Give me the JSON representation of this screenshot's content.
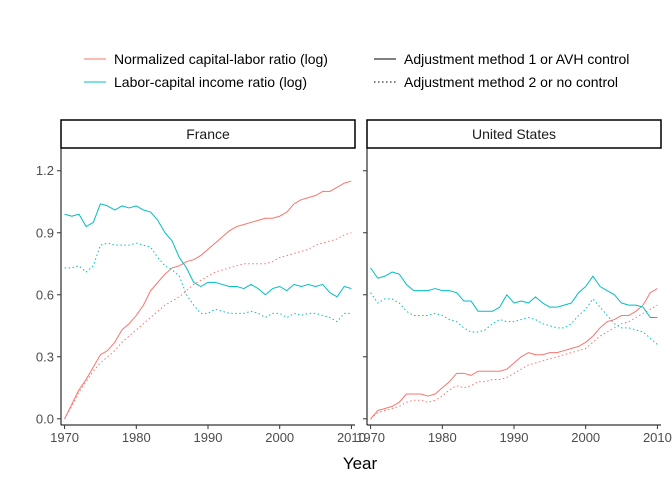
{
  "chart_data": {
    "type": "line",
    "xlabel": "Year",
    "ylabel": "",
    "xlim": [
      1969.5,
      2010.5
    ],
    "ylim": [
      -0.03,
      1.31
    ],
    "x_ticks": [
      1970,
      1980,
      1990,
      2000,
      2010
    ],
    "x_tick_labels": [
      "1970",
      "1980",
      "1990",
      "2000",
      "2010"
    ],
    "y_ticks": [
      0.0,
      0.3,
      0.6,
      0.9,
      1.2
    ],
    "y_tick_labels": [
      "0.0",
      "0.3",
      "0.6",
      "0.9",
      "1.2"
    ],
    "legend": {
      "placement": "top",
      "color_entries": [
        {
          "label": "Normalized capital-labor ratio (log)",
          "color": "#F8766D"
        },
        {
          "label": "Labor-capital income ratio (log)",
          "color": "#00BFC4"
        }
      ],
      "linetype_entries": [
        {
          "label": "Adjustment method 1 or AVH control",
          "linetype": "solid"
        },
        {
          "label": "Adjustment method 2 or no control",
          "linetype": "dotted"
        }
      ]
    },
    "panels": [
      {
        "title": "France",
        "x": [
          1970,
          1971,
          1972,
          1973,
          1974,
          1975,
          1976,
          1977,
          1978,
          1979,
          1980,
          1981,
          1982,
          1983,
          1984,
          1985,
          1986,
          1987,
          1988,
          1989,
          1990,
          1991,
          1992,
          1993,
          1994,
          1995,
          1996,
          1997,
          1998,
          1999,
          2000,
          2001,
          2002,
          2003,
          2004,
          2005,
          2006,
          2007,
          2008,
          2009,
          2010
        ],
        "series": [
          {
            "name": "Normalized capital-labor ratio (log)",
            "method": "Adjustment method 1 or AVH control",
            "color": "#F8766D",
            "linetype": "solid",
            "values": [
              0.0,
              0.07,
              0.14,
              0.19,
              0.25,
              0.31,
              0.33,
              0.37,
              0.43,
              0.46,
              0.5,
              0.55,
              0.62,
              0.66,
              0.7,
              0.73,
              0.74,
              0.76,
              0.77,
              0.79,
              0.82,
              0.85,
              0.88,
              0.91,
              0.93,
              0.94,
              0.95,
              0.96,
              0.97,
              0.97,
              0.98,
              1.0,
              1.04,
              1.06,
              1.07,
              1.08,
              1.1,
              1.1,
              1.12,
              1.14,
              1.15
            ]
          },
          {
            "name": "Normalized capital-labor ratio (log)",
            "method": "Adjustment method 2 or no control",
            "color": "#F8766D",
            "linetype": "dotted",
            "values": [
              0.0,
              0.06,
              0.13,
              0.18,
              0.23,
              0.27,
              0.3,
              0.33,
              0.37,
              0.4,
              0.43,
              0.46,
              0.49,
              0.52,
              0.55,
              0.57,
              0.59,
              0.62,
              0.65,
              0.67,
              0.69,
              0.71,
              0.72,
              0.73,
              0.74,
              0.75,
              0.75,
              0.75,
              0.75,
              0.76,
              0.78,
              0.79,
              0.8,
              0.81,
              0.82,
              0.84,
              0.85,
              0.86,
              0.87,
              0.89,
              0.9
            ]
          },
          {
            "name": "Labor-capital income ratio (log)",
            "method": "Adjustment method 1 or AVH control",
            "color": "#00BFC4",
            "linetype": "solid",
            "values": [
              0.99,
              0.98,
              0.99,
              0.93,
              0.95,
              1.04,
              1.03,
              1.01,
              1.03,
              1.02,
              1.03,
              1.01,
              1.0,
              0.96,
              0.9,
              0.86,
              0.78,
              0.73,
              0.66,
              0.64,
              0.66,
              0.66,
              0.65,
              0.64,
              0.64,
              0.63,
              0.65,
              0.63,
              0.6,
              0.63,
              0.64,
              0.62,
              0.65,
              0.64,
              0.65,
              0.64,
              0.65,
              0.61,
              0.59,
              0.64,
              0.63
            ]
          },
          {
            "name": "Labor-capital income ratio (log)",
            "method": "Adjustment method 2 or no control",
            "color": "#00BFC4",
            "linetype": "dotted",
            "values": [
              0.73,
              0.73,
              0.74,
              0.71,
              0.74,
              0.84,
              0.85,
              0.84,
              0.84,
              0.84,
              0.85,
              0.84,
              0.83,
              0.78,
              0.74,
              0.72,
              0.69,
              0.6,
              0.55,
              0.51,
              0.51,
              0.53,
              0.52,
              0.51,
              0.51,
              0.51,
              0.52,
              0.51,
              0.49,
              0.51,
              0.51,
              0.49,
              0.51,
              0.5,
              0.51,
              0.51,
              0.5,
              0.49,
              0.47,
              0.51,
              0.51
            ]
          }
        ]
      },
      {
        "title": "United States",
        "x": [
          1970,
          1971,
          1972,
          1973,
          1974,
          1975,
          1976,
          1977,
          1978,
          1979,
          1980,
          1981,
          1982,
          1983,
          1984,
          1985,
          1986,
          1987,
          1988,
          1989,
          1990,
          1991,
          1992,
          1993,
          1994,
          1995,
          1996,
          1997,
          1998,
          1999,
          2000,
          2001,
          2002,
          2003,
          2004,
          2005,
          2006,
          2007,
          2008,
          2009,
          2010
        ],
        "series": [
          {
            "name": "Normalized capital-labor ratio (log)",
            "method": "Adjustment method 1 or AVH control",
            "color": "#F8766D",
            "linetype": "solid",
            "values": [
              0.0,
              0.04,
              0.05,
              0.06,
              0.08,
              0.12,
              0.12,
              0.12,
              0.11,
              0.12,
              0.15,
              0.18,
              0.22,
              0.22,
              0.21,
              0.23,
              0.23,
              0.23,
              0.23,
              0.24,
              0.27,
              0.3,
              0.32,
              0.31,
              0.31,
              0.32,
              0.32,
              0.33,
              0.34,
              0.35,
              0.37,
              0.4,
              0.44,
              0.47,
              0.48,
              0.5,
              0.5,
              0.52,
              0.55,
              0.61,
              0.63
            ]
          },
          {
            "name": "Normalized capital-labor ratio (log)",
            "method": "Adjustment method 2 or no control",
            "color": "#F8766D",
            "linetype": "dotted",
            "values": [
              0.0,
              0.03,
              0.04,
              0.05,
              0.06,
              0.08,
              0.09,
              0.09,
              0.08,
              0.09,
              0.11,
              0.14,
              0.16,
              0.15,
              0.16,
              0.18,
              0.18,
              0.19,
              0.19,
              0.2,
              0.22,
              0.24,
              0.26,
              0.27,
              0.28,
              0.29,
              0.3,
              0.31,
              0.32,
              0.33,
              0.34,
              0.37,
              0.4,
              0.42,
              0.44,
              0.46,
              0.47,
              0.49,
              0.51,
              0.53,
              0.55
            ]
          },
          {
            "name": "Labor-capital income ratio (log)",
            "method": "Adjustment method 1 or AVH control",
            "color": "#00BFC4",
            "linetype": "solid",
            "values": [
              0.73,
              0.68,
              0.69,
              0.71,
              0.7,
              0.65,
              0.62,
              0.62,
              0.62,
              0.63,
              0.62,
              0.62,
              0.61,
              0.57,
              0.57,
              0.52,
              0.52,
              0.52,
              0.54,
              0.6,
              0.56,
              0.57,
              0.56,
              0.59,
              0.56,
              0.54,
              0.54,
              0.55,
              0.56,
              0.61,
              0.64,
              0.69,
              0.64,
              0.62,
              0.6,
              0.56,
              0.55,
              0.55,
              0.54,
              0.49,
              0.49
            ]
          },
          {
            "name": "Labor-capital income ratio (log)",
            "method": "Adjustment method 2 or no control",
            "color": "#00BFC4",
            "linetype": "dotted",
            "values": [
              0.61,
              0.56,
              0.58,
              0.58,
              0.56,
              0.52,
              0.5,
              0.5,
              0.5,
              0.51,
              0.5,
              0.48,
              0.47,
              0.44,
              0.42,
              0.42,
              0.43,
              0.46,
              0.48,
              0.47,
              0.47,
              0.48,
              0.49,
              0.48,
              0.46,
              0.45,
              0.44,
              0.44,
              0.46,
              0.5,
              0.53,
              0.58,
              0.54,
              0.5,
              0.46,
              0.44,
              0.44,
              0.43,
              0.42,
              0.39,
              0.36
            ]
          }
        ]
      }
    ]
  }
}
